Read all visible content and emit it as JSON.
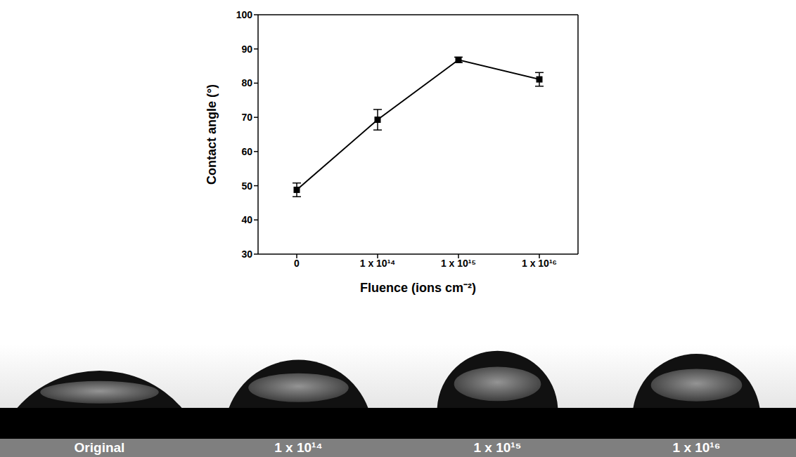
{
  "chart_data": {
    "type": "line",
    "x_label": "Fluence (ions cm⁻²)",
    "y_label": "Contact angle (°)",
    "categories": [
      "0",
      "1 x 10¹⁴",
      "1 x 10¹⁵",
      "1 x 10¹⁶"
    ],
    "values": [
      48.8,
      69.3,
      86.8,
      81.1
    ],
    "errors": [
      2.0,
      3.0,
      0.8,
      2.0
    ],
    "color": "#000000",
    "marker": "square",
    "ylim": [
      30,
      100
    ],
    "yticks": [
      30,
      40,
      50,
      60,
      70,
      80,
      90,
      100
    ],
    "grid": false
  },
  "image_labels": [
    "Original",
    "1 x 10¹⁴",
    "1 x 10¹⁵",
    "1 x 10¹⁶"
  ]
}
